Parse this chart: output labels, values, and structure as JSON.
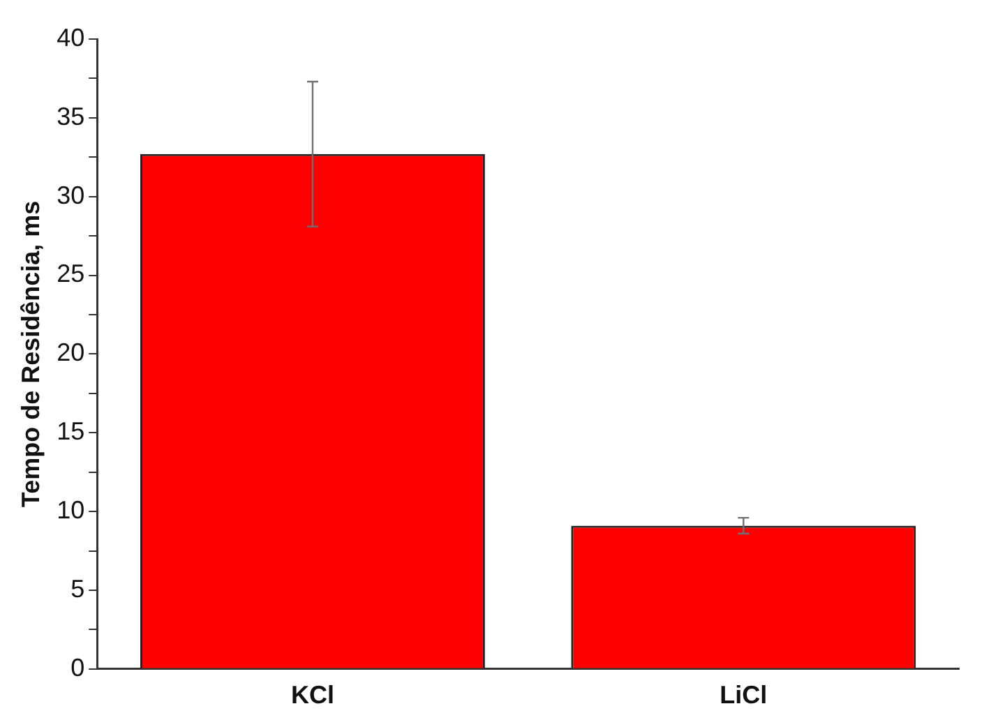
{
  "chart_data": {
    "type": "bar",
    "ylabel": "Tempo de Residência, ms",
    "categories": [
      "KCl",
      "LiCl"
    ],
    "values": [
      32.7,
      9.1
    ],
    "errors": [
      4.6,
      0.5
    ],
    "color": "#ff0000",
    "ylim": [
      0,
      40
    ],
    "yticks": [
      0,
      {
        "value": 2.5,
        "label": null
      },
      5,
      {
        "value": 7.5,
        "label": null
      },
      10,
      {
        "value": 12.5,
        "label": null
      },
      15,
      {
        "value": 17.5,
        "label": null
      },
      20,
      {
        "value": 22.5,
        "label": null
      },
      25,
      {
        "value": 27.5,
        "label": null
      },
      30,
      {
        "value": 32.5,
        "label": null
      },
      35,
      {
        "value": 37.5,
        "label": null
      },
      40
    ],
    "grid": false,
    "legend": false
  }
}
